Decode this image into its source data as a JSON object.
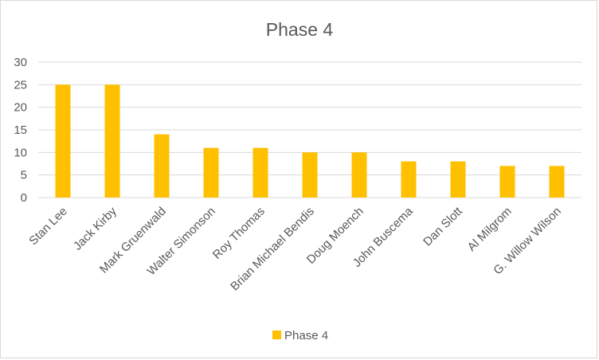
{
  "chart_data": {
    "type": "bar",
    "title": "Phase 4",
    "categories": [
      "Stan Lee",
      "Jack Kirby",
      "Mark Gruenwald",
      "Walter Simonson",
      "Roy Thomas",
      "Brian Michael Bendis",
      "Doug Moench",
      "John Buscema",
      "Dan Slott",
      "Al Milgrom",
      "G. Willow Wilson"
    ],
    "series": [
      {
        "name": "Phase 4",
        "values": [
          25,
          25,
          14,
          11,
          11,
          10,
          10,
          8,
          8,
          7,
          7
        ],
        "color": "#FFC000"
      }
    ],
    "ylim": [
      0,
      30
    ],
    "yticks": [
      0,
      5,
      10,
      15,
      20,
      25,
      30
    ],
    "grid": true,
    "legend_position": "bottom"
  }
}
